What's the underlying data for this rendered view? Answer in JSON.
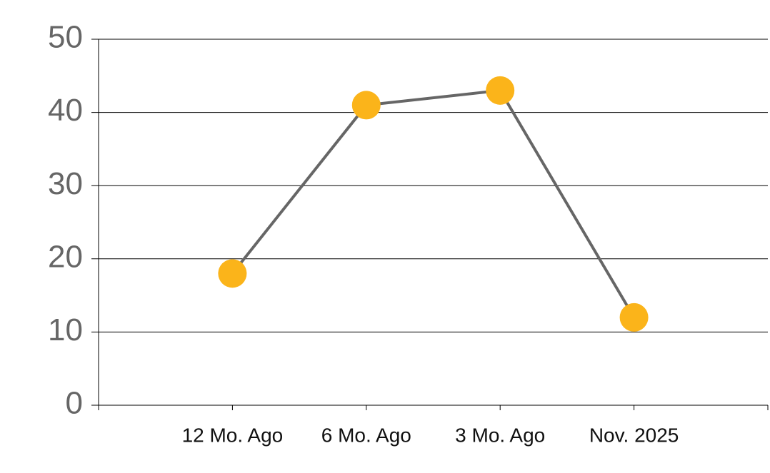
{
  "chart_data": {
    "type": "line",
    "categories": [
      "12 Mo. Ago",
      "6 Mo. Ago",
      "3 Mo. Ago",
      "Nov. 2025"
    ],
    "values": [
      18,
      41,
      43,
      12
    ],
    "color": "#fbb41a",
    "line_color": "#666666",
    "ylim": [
      0,
      50
    ],
    "yticks": [
      0,
      10,
      20,
      30,
      40,
      50
    ],
    "grid": true
  }
}
